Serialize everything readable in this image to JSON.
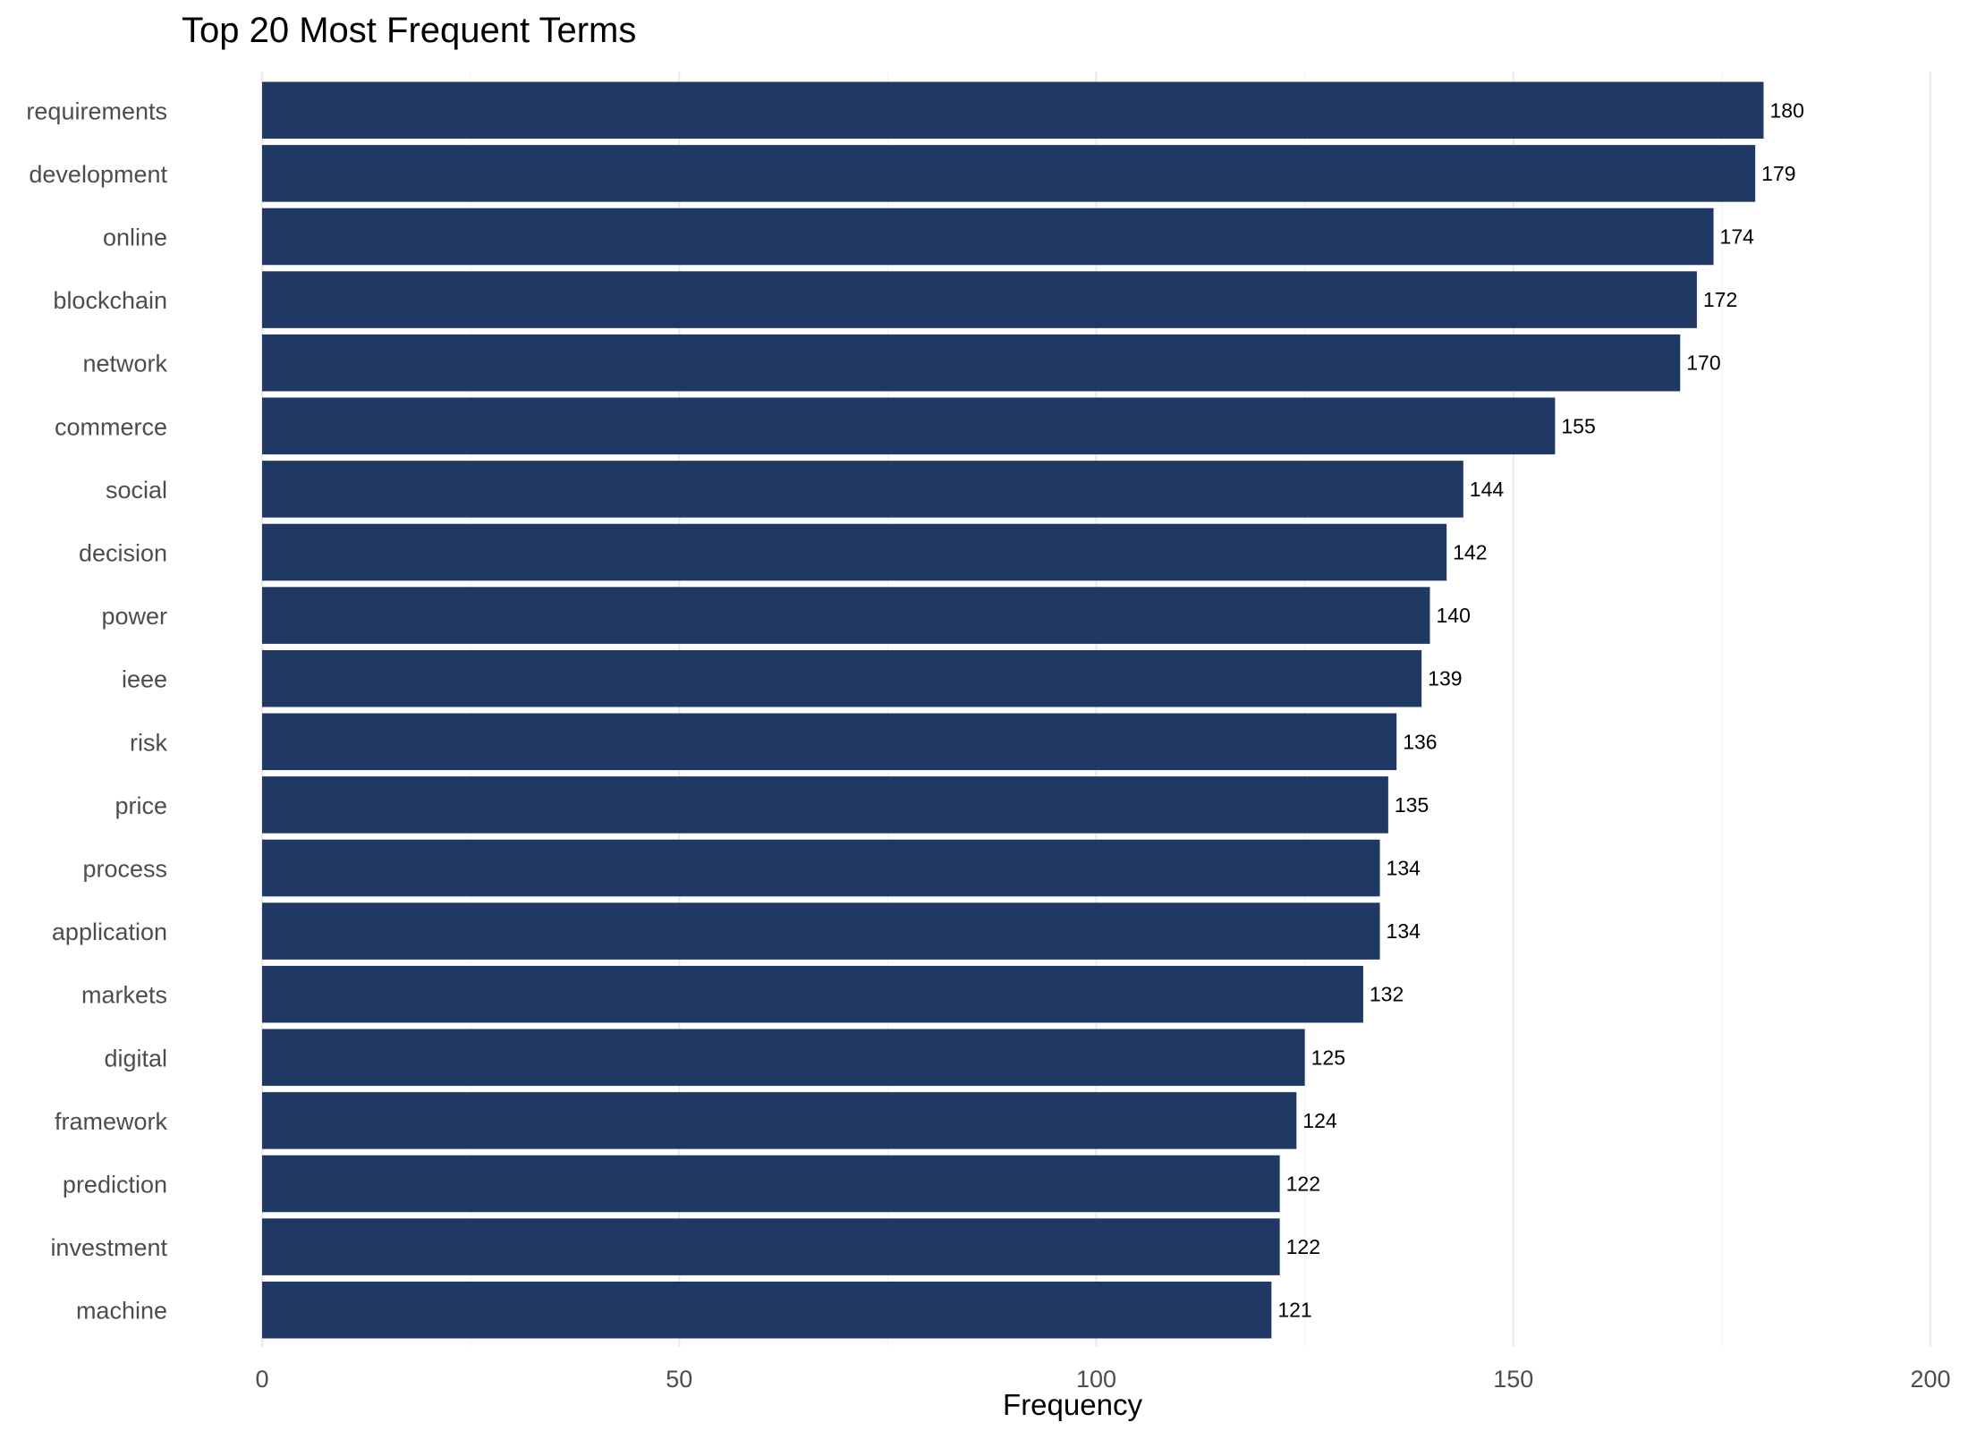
{
  "chart_data": {
    "type": "bar",
    "orientation": "horizontal",
    "title": "Top 20 Most Frequent Terms",
    "xlabel": "Frequency",
    "ylabel": "",
    "xlim": [
      0,
      200
    ],
    "x_ticks": [
      0,
      50,
      100,
      150,
      200
    ],
    "grid": true,
    "legend": "none",
    "bar_color": "#1f3864",
    "categories": [
      "requirements",
      "development",
      "online",
      "blockchain",
      "network",
      "commerce",
      "social",
      "decision",
      "power",
      "ieee",
      "risk",
      "price",
      "process",
      "application",
      "markets",
      "digital",
      "framework",
      "prediction",
      "investment",
      "machine"
    ],
    "values": [
      180,
      179,
      174,
      172,
      170,
      155,
      144,
      142,
      140,
      139,
      136,
      135,
      134,
      134,
      132,
      125,
      124,
      122,
      122,
      121
    ]
  }
}
